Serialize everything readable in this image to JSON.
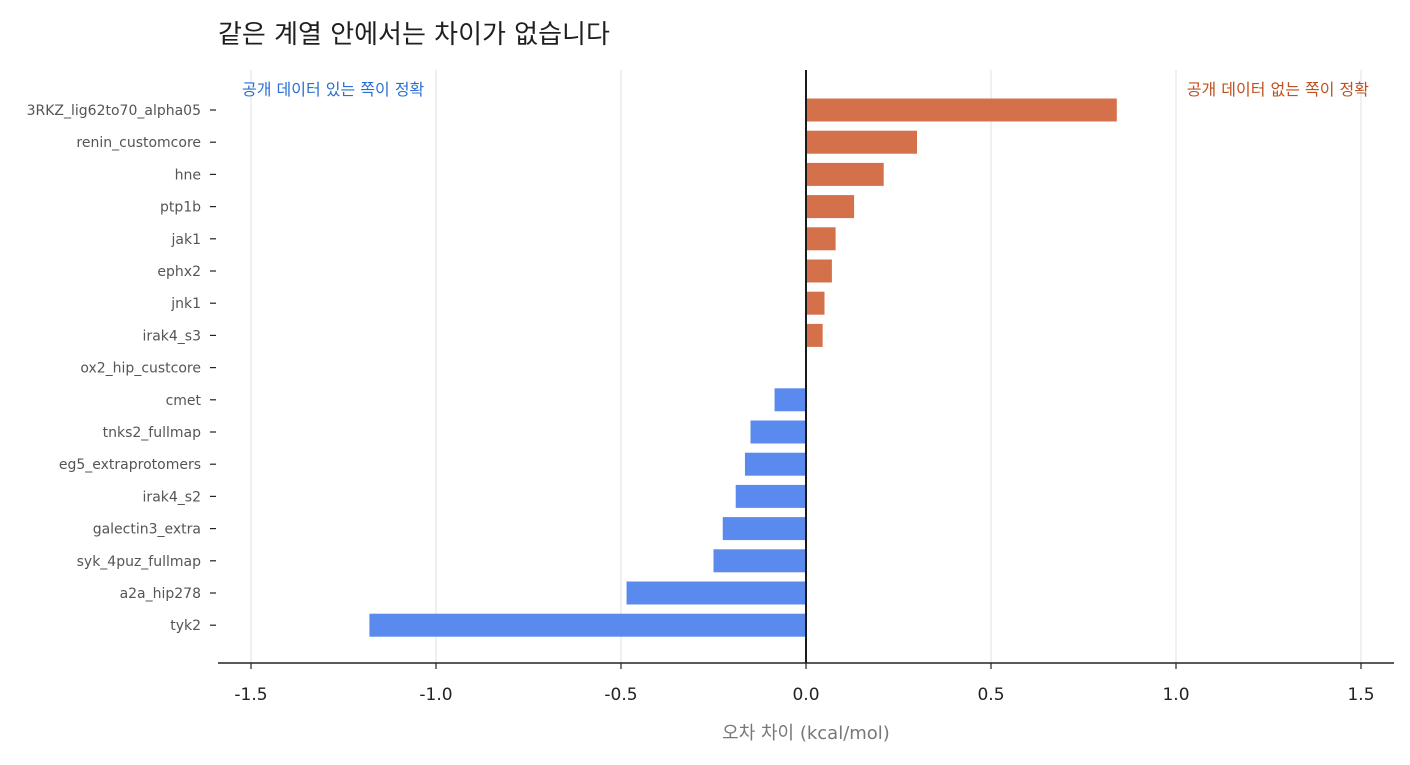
{
  "chart_data": {
    "type": "bar",
    "orientation": "horizontal",
    "title": "같은 계열 안에서는 차이가 없습니다",
    "xlabel": "오차 차이 (kcal/mol)",
    "xlim": [
      -1.6,
      1.6
    ],
    "xticks": [
      "-1.5",
      "-1.0",
      "-0.5",
      "0.0",
      "0.5",
      "1.0",
      "1.5"
    ],
    "grid": "vertical",
    "annotations": {
      "left": "공개 데이터 있는 쪽이 정확",
      "right": "공개 데이터 없는 쪽이 정확"
    },
    "colors": {
      "positive": "#D4714A",
      "negative": "#5B8AEE",
      "zero_line": "#1a1a1a",
      "grid": "#e6e6e6"
    },
    "categories": [
      "3RKZ_lig62to70_alpha05",
      "renin_customcore",
      "hne",
      "ptp1b",
      "jak1",
      "ephx2",
      "jnk1",
      "irak4_s3",
      "ox2_hip_custcore",
      "cmet",
      "tnks2_fullmap",
      "eg5_extraprotomers",
      "irak4_s2",
      "galectin3_extra",
      "syk_4puz_fullmap",
      "a2a_hip278",
      "tyk2"
    ],
    "values": [
      0.84,
      0.3,
      0.21,
      0.13,
      0.08,
      0.07,
      0.05,
      0.045,
      0.0,
      -0.085,
      -0.15,
      -0.165,
      -0.19,
      -0.225,
      -0.25,
      -0.485,
      -1.18
    ]
  }
}
